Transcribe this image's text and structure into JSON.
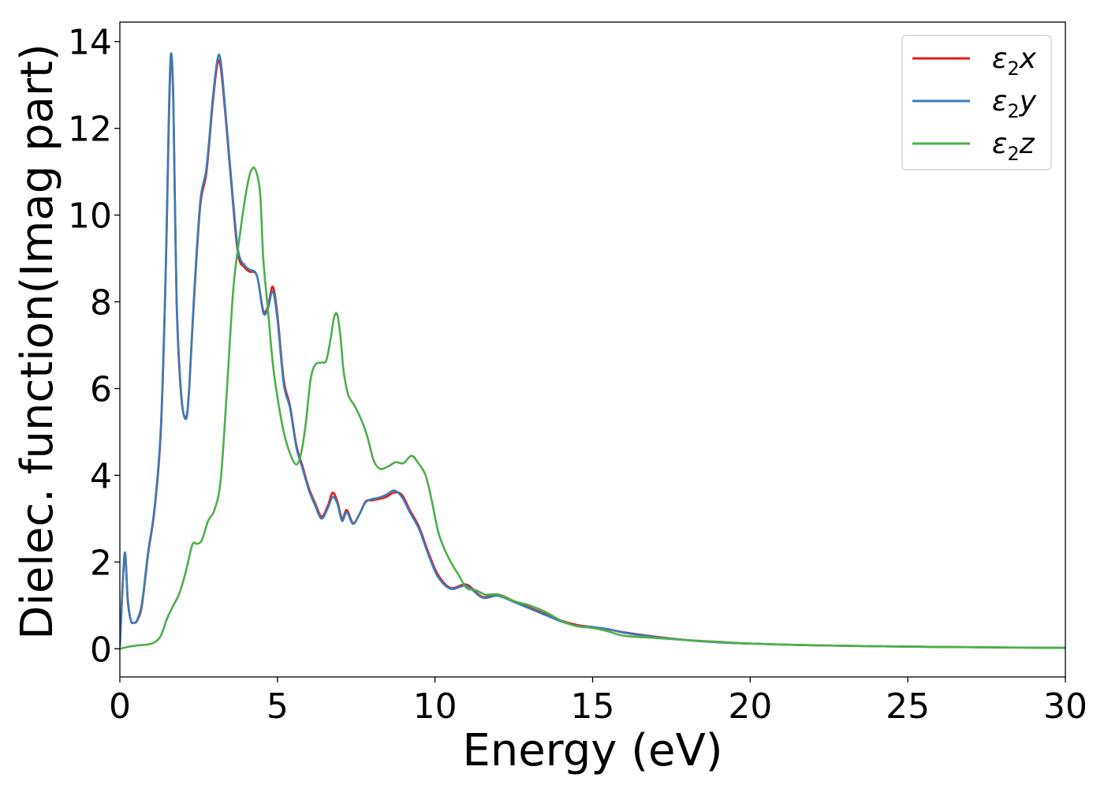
{
  "chart_data": {
    "type": "line",
    "xlabel": "Energy (eV)",
    "ylabel": "Dielec. function(Imag part)",
    "xlim": [
      0,
      30
    ],
    "ylim": [
      -0.65,
      14.45
    ],
    "xticks": [
      0,
      5,
      10,
      15,
      20,
      25,
      30
    ],
    "yticks": [
      0,
      2,
      4,
      6,
      8,
      10,
      12,
      14
    ],
    "grid": false,
    "legend_position": "top-right",
    "series": [
      {
        "name": "ε₂x",
        "legend_base": "ε",
        "legend_sub": "2",
        "legend_suffix": "x",
        "color": "#e41a1c",
        "x": [
          0.0,
          0.15,
          0.25,
          0.35,
          0.45,
          0.55,
          0.7,
          0.9,
          1.1,
          1.3,
          1.45,
          1.55,
          1.62,
          1.7,
          1.8,
          1.95,
          2.1,
          2.2,
          2.35,
          2.55,
          2.75,
          2.95,
          3.1,
          3.2,
          3.35,
          3.55,
          3.75,
          3.95,
          4.1,
          4.35,
          4.55,
          4.7,
          4.85,
          5.0,
          5.2,
          5.4,
          5.6,
          5.8,
          6.0,
          6.2,
          6.4,
          6.6,
          6.75,
          6.9,
          7.05,
          7.2,
          7.4,
          7.6,
          7.8,
          8.0,
          8.2,
          8.45,
          8.7,
          8.95,
          9.2,
          9.5,
          9.8,
          10.1,
          10.5,
          11.0,
          11.5,
          12.0,
          12.5,
          13.0,
          13.5,
          14.0,
          14.5,
          15.0,
          15.5,
          16.0,
          17.0,
          18.0,
          19.0,
          20.0,
          22.0,
          25.0,
          28.0,
          30.0
        ],
        "y": [
          0.05,
          2.15,
          1.1,
          0.65,
          0.6,
          0.65,
          1.0,
          2.2,
          3.2,
          5.0,
          8.5,
          12.0,
          13.6,
          12.5,
          8.0,
          5.8,
          5.35,
          6.0,
          8.0,
          10.2,
          11.0,
          12.6,
          13.5,
          13.4,
          12.3,
          10.6,
          9.1,
          8.8,
          8.7,
          8.6,
          7.8,
          7.9,
          8.35,
          7.7,
          6.2,
          5.6,
          4.7,
          4.2,
          3.7,
          3.35,
          3.05,
          3.3,
          3.6,
          3.4,
          3.0,
          3.2,
          2.9,
          3.1,
          3.4,
          3.42,
          3.45,
          3.5,
          3.6,
          3.55,
          3.2,
          2.8,
          2.2,
          1.7,
          1.4,
          1.48,
          1.2,
          1.25,
          1.1,
          0.95,
          0.8,
          0.65,
          0.55,
          0.5,
          0.45,
          0.38,
          0.28,
          0.2,
          0.15,
          0.12,
          0.08,
          0.05,
          0.03,
          0.02
        ]
      },
      {
        "name": "ε₂y",
        "legend_base": "ε",
        "legend_sub": "2",
        "legend_suffix": "y",
        "color": "#377eb8",
        "x": [
          0.0,
          0.15,
          0.25,
          0.35,
          0.45,
          0.55,
          0.7,
          0.9,
          1.1,
          1.3,
          1.45,
          1.55,
          1.62,
          1.7,
          1.8,
          1.95,
          2.1,
          2.2,
          2.35,
          2.55,
          2.75,
          2.95,
          3.1,
          3.2,
          3.35,
          3.55,
          3.75,
          3.95,
          4.1,
          4.35,
          4.55,
          4.7,
          4.85,
          5.0,
          5.2,
          5.4,
          5.6,
          5.8,
          6.0,
          6.2,
          6.4,
          6.6,
          6.75,
          6.9,
          7.05,
          7.2,
          7.4,
          7.6,
          7.8,
          8.0,
          8.2,
          8.45,
          8.7,
          8.95,
          9.2,
          9.5,
          9.8,
          10.1,
          10.5,
          11.0,
          11.5,
          12.0,
          12.5,
          13.0,
          13.5,
          14.0,
          14.5,
          15.0,
          15.5,
          16.0,
          17.0,
          18.0,
          19.0,
          20.0,
          22.0,
          25.0,
          28.0,
          30.0
        ],
        "y": [
          0.05,
          2.2,
          1.15,
          0.65,
          0.6,
          0.67,
          1.05,
          2.25,
          3.25,
          5.1,
          8.6,
          12.2,
          13.72,
          12.6,
          8.1,
          5.85,
          5.3,
          6.0,
          8.1,
          10.3,
          11.1,
          12.7,
          13.6,
          13.55,
          12.4,
          10.7,
          9.2,
          8.85,
          8.75,
          8.6,
          7.75,
          7.85,
          8.25,
          7.6,
          6.1,
          5.55,
          4.65,
          4.15,
          3.65,
          3.3,
          3.0,
          3.25,
          3.5,
          3.35,
          2.95,
          3.15,
          2.88,
          3.1,
          3.38,
          3.45,
          3.48,
          3.55,
          3.65,
          3.5,
          3.15,
          2.75,
          2.15,
          1.65,
          1.38,
          1.45,
          1.18,
          1.22,
          1.08,
          0.93,
          0.78,
          0.63,
          0.53,
          0.5,
          0.45,
          0.37,
          0.27,
          0.2,
          0.15,
          0.12,
          0.08,
          0.05,
          0.03,
          0.02
        ]
      },
      {
        "name": "ε₂z",
        "legend_base": "ε",
        "legend_sub": "2",
        "legend_suffix": "z",
        "color": "#4daf4a",
        "x": [
          0.0,
          0.3,
          0.6,
          0.9,
          1.1,
          1.3,
          1.5,
          1.7,
          1.9,
          2.1,
          2.3,
          2.45,
          2.6,
          2.8,
          3.0,
          3.2,
          3.4,
          3.6,
          3.8,
          4.0,
          4.15,
          4.3,
          4.45,
          4.55,
          4.7,
          4.85,
          5.0,
          5.2,
          5.4,
          5.6,
          5.75,
          5.9,
          6.05,
          6.2,
          6.4,
          6.55,
          6.7,
          6.8,
          6.9,
          7.0,
          7.1,
          7.25,
          7.45,
          7.65,
          7.85,
          8.05,
          8.25,
          8.5,
          8.75,
          9.0,
          9.25,
          9.45,
          9.7,
          9.9,
          10.1,
          10.3,
          10.5,
          10.75,
          11.0,
          11.3,
          11.6,
          12.0,
          12.5,
          13.0,
          13.5,
          14.0,
          14.5,
          15.0,
          15.5,
          16.0,
          17.0,
          18.0,
          19.0,
          20.0,
          22.0,
          25.0,
          28.0,
          30.0
        ],
        "y": [
          0.0,
          0.05,
          0.08,
          0.1,
          0.15,
          0.3,
          0.7,
          1.0,
          1.3,
          1.8,
          2.4,
          2.42,
          2.5,
          2.95,
          3.2,
          3.9,
          6.0,
          8.3,
          9.5,
          10.5,
          11.0,
          11.05,
          10.5,
          9.0,
          7.8,
          6.6,
          5.8,
          5.0,
          4.5,
          4.25,
          4.5,
          5.2,
          6.2,
          6.55,
          6.6,
          6.65,
          7.2,
          7.65,
          7.7,
          7.2,
          6.4,
          5.85,
          5.6,
          5.3,
          4.9,
          4.35,
          4.15,
          4.2,
          4.3,
          4.28,
          4.45,
          4.3,
          4.0,
          3.4,
          2.7,
          2.3,
          2.0,
          1.7,
          1.4,
          1.35,
          1.25,
          1.25,
          1.1,
          1.0,
          0.85,
          0.65,
          0.52,
          0.48,
          0.4,
          0.3,
          0.25,
          0.2,
          0.16,
          0.12,
          0.08,
          0.05,
          0.03,
          0.02
        ]
      }
    ]
  }
}
